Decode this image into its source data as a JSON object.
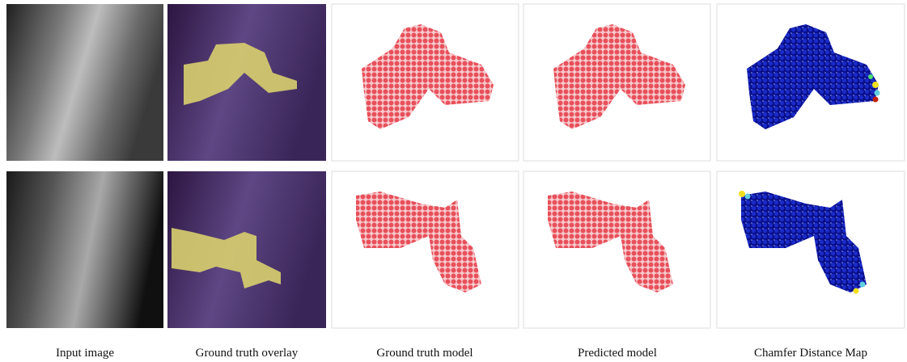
{
  "captions": [
    "Input image",
    "Ground truth overlay",
    "Ground truth model",
    "Predicted model",
    "Chamfer Distance Map"
  ]
}
